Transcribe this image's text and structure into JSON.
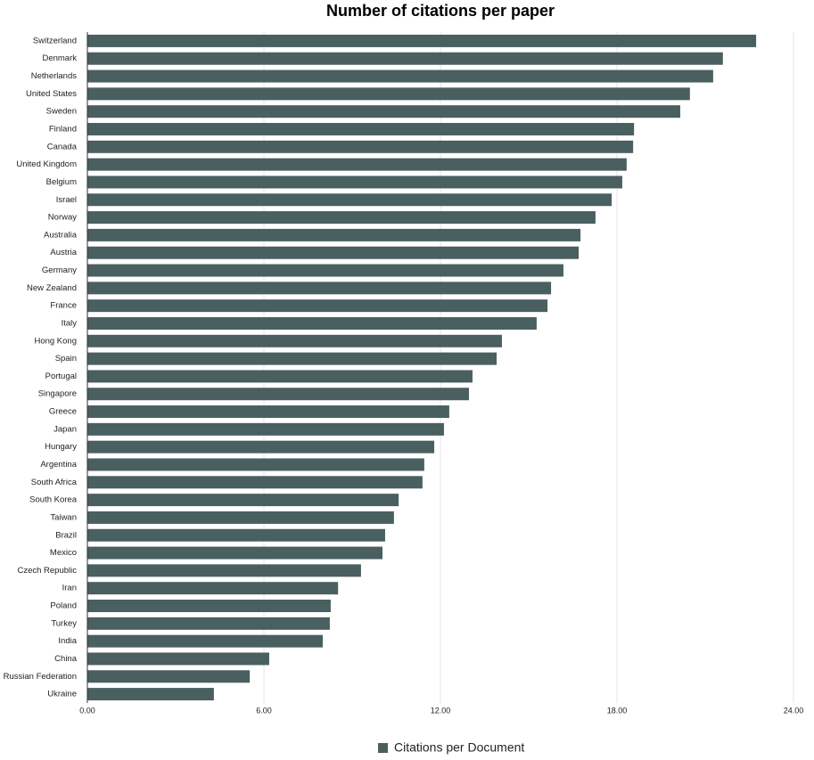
{
  "chart_data": {
    "type": "bar",
    "orientation": "horizontal",
    "title": "Number of citations per paper",
    "categories": [
      "Switzerland",
      "Denmark",
      "Netherlands",
      "United States",
      "Sweden",
      "Finland",
      "Canada",
      "United Kingdom",
      "Belgium",
      "Israel",
      "Norway",
      "Australia",
      "Austria",
      "Germany",
      "New Zealand",
      "France",
      "Italy",
      "Hong Kong",
      "Spain",
      "Portugal",
      "Singapore",
      "Greece",
      "Japan",
      "Hungary",
      "Argentina",
      "South Africa",
      "South Korea",
      "Taiwan",
      "Brazil",
      "Mexico",
      "Czech Republic",
      "Iran",
      "Poland",
      "Turkey",
      "India",
      "China",
      "Russian Federation",
      "Ukraine"
    ],
    "series": [
      {
        "name": "Citations per Document",
        "color": "#4a5f5f",
        "values": [
          22.73,
          21.6,
          21.27,
          20.48,
          20.15,
          18.58,
          18.55,
          18.33,
          18.18,
          17.82,
          17.27,
          16.76,
          16.7,
          16.18,
          15.76,
          15.64,
          15.27,
          14.09,
          13.91,
          13.09,
          12.97,
          12.3,
          12.12,
          11.79,
          11.45,
          11.39,
          10.58,
          10.42,
          10.12,
          10.03,
          9.3,
          8.52,
          8.27,
          8.24,
          8.0,
          6.18,
          5.52,
          4.3
        ]
      }
    ],
    "xlim": [
      0,
      24
    ],
    "xticks": [
      {
        "value": 0,
        "label": "0.00"
      },
      {
        "value": 6,
        "label": "6.00"
      },
      {
        "value": 12,
        "label": "12.00"
      },
      {
        "value": 18,
        "label": "18.00"
      },
      {
        "value": 24,
        "label": "24.00"
      }
    ],
    "grid": true,
    "legend": "bottom"
  }
}
